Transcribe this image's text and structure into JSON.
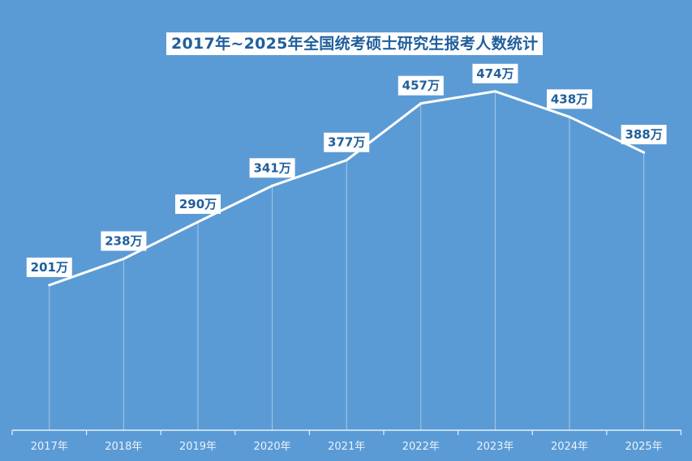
{
  "chart_data": {
    "type": "line",
    "title": "2017年~2025年全国统考硕士研究生报考人数统计",
    "categories": [
      "2017年",
      "2018年",
      "2019年",
      "2020年",
      "2021年",
      "2022年",
      "2023年",
      "2024年",
      "2025年"
    ],
    "values": [
      201,
      238,
      290,
      341,
      377,
      457,
      474,
      438,
      388
    ],
    "unit_suffix": "万",
    "data_labels": [
      "201万",
      "238万",
      "290万",
      "341万",
      "377万",
      "457万",
      "474万",
      "438万",
      "388万"
    ],
    "xlabel": "",
    "ylabel": "",
    "ylim": [
      0,
      610
    ],
    "grid": false,
    "drop_lines": true,
    "legend": "none",
    "colors": {
      "background": "#5b9bd5",
      "line": "#ffffff",
      "label_text": "#1f5f9c",
      "label_box": "#ffffff"
    }
  }
}
